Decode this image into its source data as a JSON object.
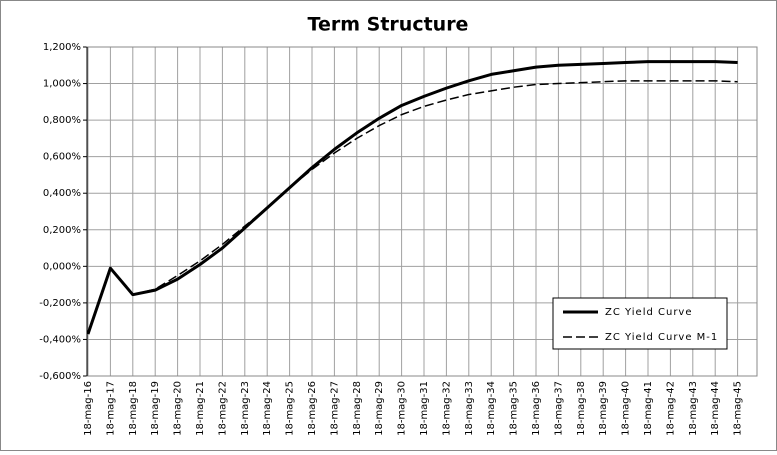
{
  "chart_data": {
    "type": "line",
    "title": "Term Structure",
    "categories": [
      "18-mag-16",
      "18-mag-17",
      "18-mag-18",
      "18-mag-19",
      "18-mag-20",
      "18-mag-21",
      "18-mag-22",
      "18-mag-23",
      "18-mag-24",
      "18-mag-25",
      "18-mag-26",
      "18-mag-27",
      "18-mag-28",
      "18-mag-29",
      "18-mag-30",
      "18-mag-31",
      "18-mag-32",
      "18-mag-33",
      "18-mag-34",
      "18-mag-35",
      "18-mag-36",
      "18-mag-37",
      "18-mag-38",
      "18-mag-39",
      "18-mag-40",
      "18-mag-41",
      "18-mag-42",
      "18-mag-43",
      "18-mag-44",
      "18-mag-45"
    ],
    "series": [
      {
        "name": "ZC Yield Curve",
        "color": "#000000",
        "dash": false,
        "values": [
          -0.37,
          -0.01,
          -0.155,
          -0.13,
          -0.07,
          0.01,
          0.1,
          0.21,
          0.32,
          0.43,
          0.54,
          0.64,
          0.73,
          0.81,
          0.88,
          0.93,
          0.975,
          1.015,
          1.05,
          1.07,
          1.09,
          1.1,
          1.105,
          1.11,
          1.115,
          1.12,
          1.12,
          1.12,
          1.12,
          1.115
        ]
      },
      {
        "name": "ZC Yield Curve M-1",
        "color": "#000000",
        "dash": true,
        "values": [
          -0.37,
          -0.01,
          -0.155,
          -0.125,
          -0.05,
          0.03,
          0.12,
          0.22,
          0.32,
          0.43,
          0.53,
          0.62,
          0.7,
          0.77,
          0.83,
          0.875,
          0.91,
          0.94,
          0.96,
          0.98,
          0.995,
          1.0,
          1.005,
          1.01,
          1.015,
          1.015,
          1.015,
          1.015,
          1.015,
          1.01
        ]
      }
    ],
    "ylim": [
      -0.6,
      1.2
    ],
    "yticks": [
      {
        "value": -0.6,
        "label": "-0,600%"
      },
      {
        "value": -0.4,
        "label": "-0,400%"
      },
      {
        "value": -0.2,
        "label": "-0,200%"
      },
      {
        "value": 0,
        "label": "0,000%"
      },
      {
        "value": 0.2,
        "label": "0,200%"
      },
      {
        "value": 0.4,
        "label": "0,400%"
      },
      {
        "value": 0.6,
        "label": "0,600%"
      },
      {
        "value": 0.8,
        "label": "0,800%"
      },
      {
        "value": 1.0,
        "label": "1,000%"
      },
      {
        "value": 1.2,
        "label": "1,200%"
      }
    ],
    "grid": true,
    "legend": "lower-right"
  }
}
